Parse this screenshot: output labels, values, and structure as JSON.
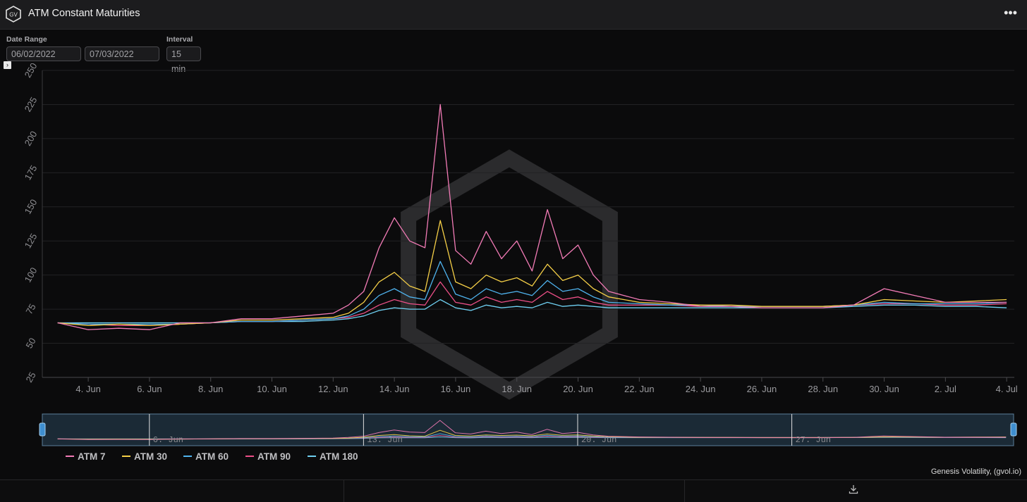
{
  "header": {
    "title": "ATM Constant Maturities",
    "logo_icon": "gv-hexagon-logo",
    "menu_icon": "more-horizontal-icon"
  },
  "controls": {
    "date_range_label": "Date Range",
    "start_date": "06/02/2022",
    "end_date": "07/03/2022",
    "interval_label": "Interval",
    "interval_value": "15 min"
  },
  "credit": "Genesis Volatility, (gvol.io)",
  "colors": {
    "background": "#0b0b0c",
    "grid": "#222224",
    "atm7": "#f27bb6",
    "atm30": "#f5cf47",
    "atm60": "#4fb3ee",
    "atm90": "#ec4f87",
    "atm180": "#6fd0f2"
  },
  "chart_data": {
    "type": "line",
    "title": "ATM Constant Maturities",
    "xlabel": "",
    "ylabel": "",
    "ylim": [
      25,
      250
    ],
    "y_ticks": [
      "25",
      "50",
      "75",
      "100",
      "125",
      "150",
      "175",
      "200",
      "225",
      "250"
    ],
    "x_tick_labels": [
      "4. Jun",
      "6. Jun",
      "8. Jun",
      "10. Jun",
      "12. Jun",
      "14. Jun",
      "16. Jun",
      "18. Jun",
      "20. Jun",
      "22. Jun",
      "24. Jun",
      "26. Jun",
      "28. Jun",
      "30. Jun",
      "2. Jul",
      "4. Jul"
    ],
    "x_tick_dates": [
      "2022-06-04",
      "2022-06-06",
      "2022-06-08",
      "2022-06-10",
      "2022-06-12",
      "2022-06-14",
      "2022-06-16",
      "2022-06-18",
      "2022-06-20",
      "2022-06-22",
      "2022-06-24",
      "2022-06-26",
      "2022-06-28",
      "2022-06-30",
      "2022-07-02",
      "2022-07-04"
    ],
    "xlim": [
      "2022-06-02T12:00",
      "2022-07-04T06:00"
    ],
    "grid": true,
    "legend_position": "bottom-left",
    "x": [
      "2022-06-03",
      "2022-06-04",
      "2022-06-05",
      "2022-06-06",
      "2022-06-07",
      "2022-06-08",
      "2022-06-09",
      "2022-06-10",
      "2022-06-11",
      "2022-06-12",
      "2022-06-12T12:00",
      "2022-06-13",
      "2022-06-13T12:00",
      "2022-06-14",
      "2022-06-14T12:00",
      "2022-06-15",
      "2022-06-15T12:00",
      "2022-06-16",
      "2022-06-16T12:00",
      "2022-06-17",
      "2022-06-17T12:00",
      "2022-06-18",
      "2022-06-18T12:00",
      "2022-06-19",
      "2022-06-19T12:00",
      "2022-06-20",
      "2022-06-20T12:00",
      "2022-06-21",
      "2022-06-22",
      "2022-06-23",
      "2022-06-24",
      "2022-06-25",
      "2022-06-26",
      "2022-06-27",
      "2022-06-28",
      "2022-06-29",
      "2022-06-30",
      "2022-07-01",
      "2022-07-02",
      "2022-07-03",
      "2022-07-04"
    ],
    "series": [
      {
        "name": "ATM 7",
        "values": [
          65,
          60,
          61,
          60,
          65,
          65,
          68,
          68,
          70,
          72,
          78,
          88,
          120,
          142,
          125,
          120,
          225,
          118,
          108,
          132,
          112,
          125,
          103,
          148,
          112,
          122,
          100,
          88,
          82,
          80,
          77,
          77,
          76,
          76,
          76,
          78,
          90,
          85,
          80,
          80,
          80
        ]
      },
      {
        "name": "ATM 30",
        "values": [
          65,
          63,
          64,
          63,
          64,
          65,
          67,
          67,
          68,
          69,
          72,
          80,
          95,
          102,
          92,
          88,
          140,
          95,
          90,
          100,
          95,
          98,
          92,
          108,
          96,
          100,
          90,
          84,
          80,
          79,
          78,
          78,
          77,
          77,
          77,
          78,
          82,
          81,
          80,
          81,
          82
        ]
      },
      {
        "name": "ATM 60",
        "values": [
          65,
          64,
          64,
          64,
          64,
          65,
          66,
          66,
          67,
          68,
          70,
          75,
          85,
          90,
          84,
          82,
          110,
          86,
          82,
          90,
          86,
          88,
          85,
          96,
          88,
          90,
          84,
          80,
          79,
          78,
          78,
          77,
          77,
          77,
          77,
          78,
          80,
          79,
          79,
          79,
          80
        ]
      },
      {
        "name": "ATM 90",
        "values": [
          65,
          64,
          63,
          63,
          64,
          65,
          66,
          66,
          67,
          68,
          69,
          72,
          78,
          82,
          79,
          78,
          95,
          80,
          78,
          84,
          80,
          82,
          80,
          88,
          82,
          84,
          80,
          78,
          78,
          78,
          77,
          77,
          77,
          77,
          77,
          78,
          79,
          79,
          78,
          78,
          79
        ]
      },
      {
        "name": "ATM 180",
        "values": [
          65,
          65,
          65,
          65,
          65,
          65,
          66,
          66,
          66,
          67,
          68,
          70,
          74,
          76,
          75,
          75,
          82,
          76,
          74,
          78,
          76,
          77,
          76,
          80,
          77,
          78,
          77,
          76,
          76,
          76,
          76,
          76,
          76,
          76,
          76,
          77,
          78,
          78,
          77,
          77,
          76
        ]
      }
    ],
    "navigator": {
      "labels": [
        "6. Jun",
        "13. Jun",
        "20. Jun",
        "27. Jun"
      ],
      "dates": [
        "2022-06-06",
        "2022-06-13",
        "2022-06-20",
        "2022-06-27"
      ]
    }
  }
}
